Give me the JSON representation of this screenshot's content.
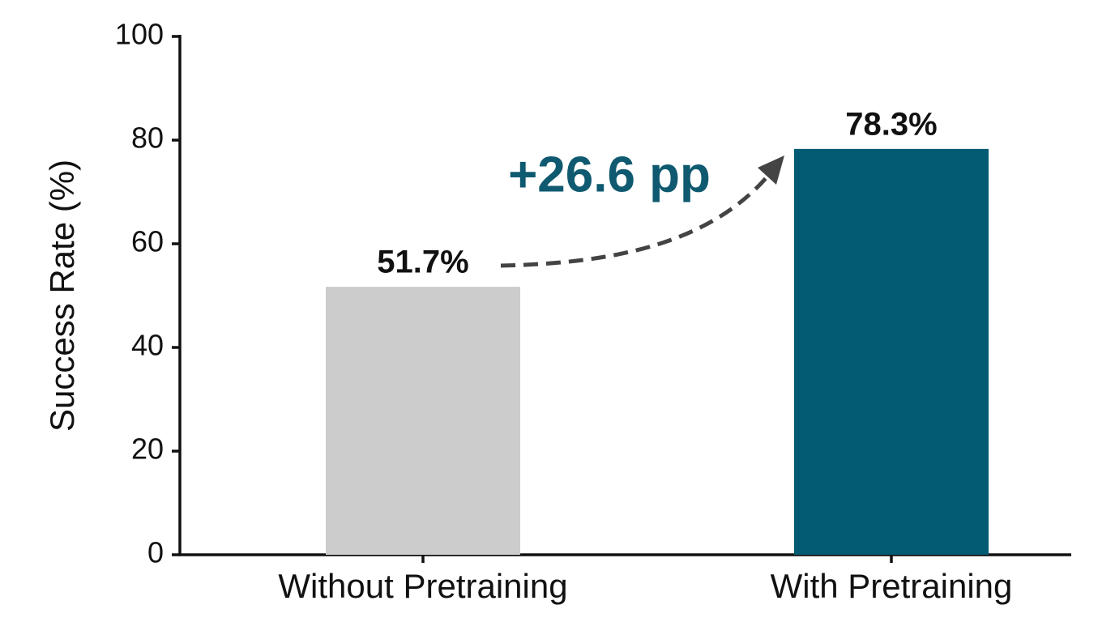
{
  "chart_data": {
    "type": "bar",
    "ylabel": "Success Rate (%)",
    "categories": [
      "Without Pretraining",
      "With Pretraining"
    ],
    "values": [
      51.7,
      78.3
    ],
    "value_labels": [
      "51.7%",
      "78.3%"
    ],
    "colors": [
      "#cccccc",
      "#035a73"
    ],
    "ylim": [
      0,
      100
    ],
    "yticks": [
      0,
      20,
      40,
      60,
      80,
      100
    ],
    "annotation": "+26.6 pp"
  }
}
